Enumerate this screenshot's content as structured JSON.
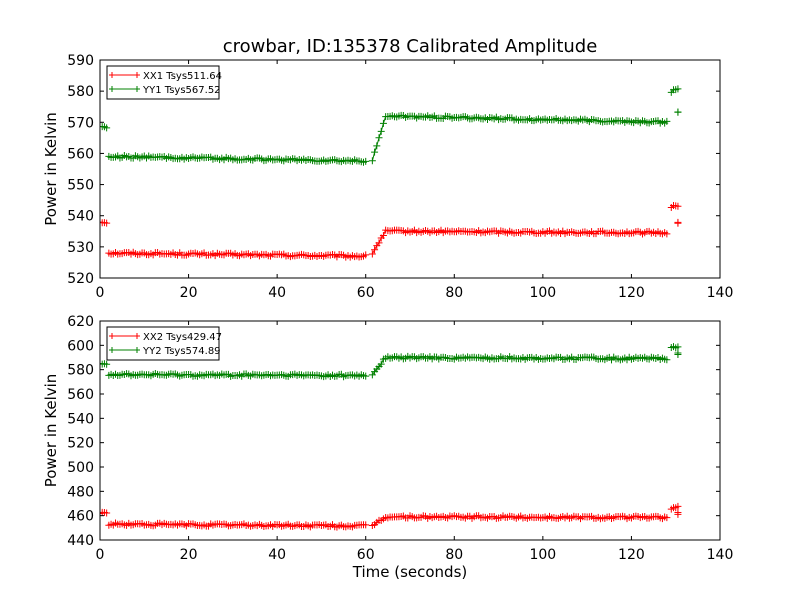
{
  "figure_title": "crowbar, ID:135378 Calibrated Amplitude",
  "chart_data": [
    {
      "type": "line",
      "title": "crowbar, ID:135378 Calibrated Amplitude",
      "xlabel": "",
      "ylabel": "Power in Kelvin",
      "xlim": [
        0,
        140
      ],
      "ylim": [
        520,
        590
      ],
      "xticks": [
        "0",
        "20",
        "40",
        "60",
        "80",
        "100",
        "120",
        "140"
      ],
      "yticks": [
        "520",
        "530",
        "540",
        "550",
        "560",
        "570",
        "580",
        "590"
      ],
      "grid": false,
      "legend_position": "top-left",
      "series": [
        {
          "name": "XX1 Tsys511.64",
          "color": "#ff0000",
          "marker": "plus",
          "segments": [
            {
              "x": [
                0,
                1.5
              ],
              "y": [
                538,
                538
              ]
            },
            {
              "x": [
                2,
                60
              ],
              "y": [
                528,
                527
              ]
            },
            {
              "x": [
                61.5,
                64.5
              ],
              "y": [
                528,
                535
              ]
            },
            {
              "x": [
                65,
                128
              ],
              "y": [
                535,
                534.5
              ]
            },
            {
              "x": [
                129,
                130.5
              ],
              "y": [
                543,
                543
              ]
            },
            {
              "x": [
                130.5,
                130.5
              ],
              "y": [
                538,
                538
              ]
            }
          ]
        },
        {
          "name": "YY1 Tsys567.52",
          "color": "#008000",
          "marker": "plus",
          "segments": [
            {
              "x": [
                0,
                1.5
              ],
              "y": [
                569,
                568
              ]
            },
            {
              "x": [
                2,
                60
              ],
              "y": [
                559,
                557.5
              ]
            },
            {
              "x": [
                61.5,
                64.5
              ],
              "y": [
                558,
                571.5
              ]
            },
            {
              "x": [
                65,
                128
              ],
              "y": [
                572,
                570
              ]
            },
            {
              "x": [
                129,
                130.5
              ],
              "y": [
                580,
                581
              ]
            },
            {
              "x": [
                130.5,
                130.5
              ],
              "y": [
                573,
                573
              ]
            }
          ]
        }
      ]
    },
    {
      "type": "line",
      "title": "",
      "xlabel": "Time (seconds)",
      "ylabel": "Power in Kelvin",
      "xlim": [
        0,
        140
      ],
      "ylim": [
        440,
        620
      ],
      "xticks": [
        "0",
        "20",
        "40",
        "60",
        "80",
        "100",
        "120",
        "140"
      ],
      "yticks": [
        "440",
        "460",
        "480",
        "500",
        "520",
        "540",
        "560",
        "580",
        "600",
        "620"
      ],
      "grid": false,
      "legend_position": "top-left",
      "series": [
        {
          "name": "XX2 Tsys429.47",
          "color": "#ff0000",
          "marker": "plus",
          "segments": [
            {
              "x": [
                0,
                1.5
              ],
              "y": [
                462,
                462
              ]
            },
            {
              "x": [
                2,
                60
              ],
              "y": [
                453,
                451.5
              ]
            },
            {
              "x": [
                61.5,
                64.5
              ],
              "y": [
                452,
                459
              ]
            },
            {
              "x": [
                65,
                128
              ],
              "y": [
                459,
                458.5
              ]
            },
            {
              "x": [
                129,
                130.5
              ],
              "y": [
                466,
                467
              ]
            },
            {
              "x": [
                130.5,
                130.5
              ],
              "y": [
                462,
                462
              ]
            }
          ]
        },
        {
          "name": "YY2 Tsys574.89",
          "color": "#008000",
          "marker": "plus",
          "segments": [
            {
              "x": [
                0,
                1.5
              ],
              "y": [
                586,
                585
              ]
            },
            {
              "x": [
                2,
                60
              ],
              "y": [
                576,
                575
              ]
            },
            {
              "x": [
                61.5,
                64.5
              ],
              "y": [
                576,
                590
              ]
            },
            {
              "x": [
                65,
                128
              ],
              "y": [
                590,
                589
              ]
            },
            {
              "x": [
                129,
                130.5
              ],
              "y": [
                599,
                599
              ]
            },
            {
              "x": [
                130.5,
                130.5
              ],
              "y": [
                593,
                593
              ]
            }
          ]
        }
      ]
    }
  ]
}
